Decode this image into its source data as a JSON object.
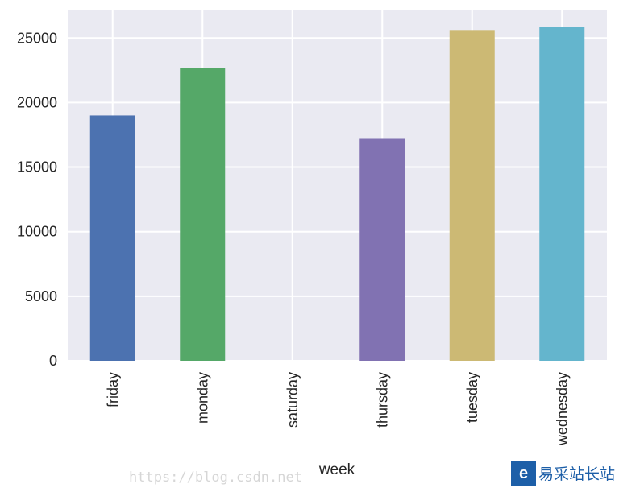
{
  "chart_data": {
    "type": "bar",
    "categories": [
      "friday",
      "monday",
      "saturday",
      "thursday",
      "tuesday",
      "wednesday"
    ],
    "values": [
      19000,
      22700,
      0,
      17250,
      25620,
      25870
    ],
    "colors": [
      "#4c72b0",
      "#55a868",
      "#c44e52",
      "#8172b2",
      "#ccb974",
      "#64b5cd"
    ],
    "xlabel": "week",
    "ylabel": "",
    "ylim": [
      0,
      27200
    ],
    "yticks": [
      0,
      5000,
      10000,
      15000,
      20000,
      25000
    ],
    "grid": true,
    "background": "#eaeaf2"
  },
  "watermark": {
    "text": "https://blog.csdn.net",
    "logo_text": "易采站长站"
  }
}
